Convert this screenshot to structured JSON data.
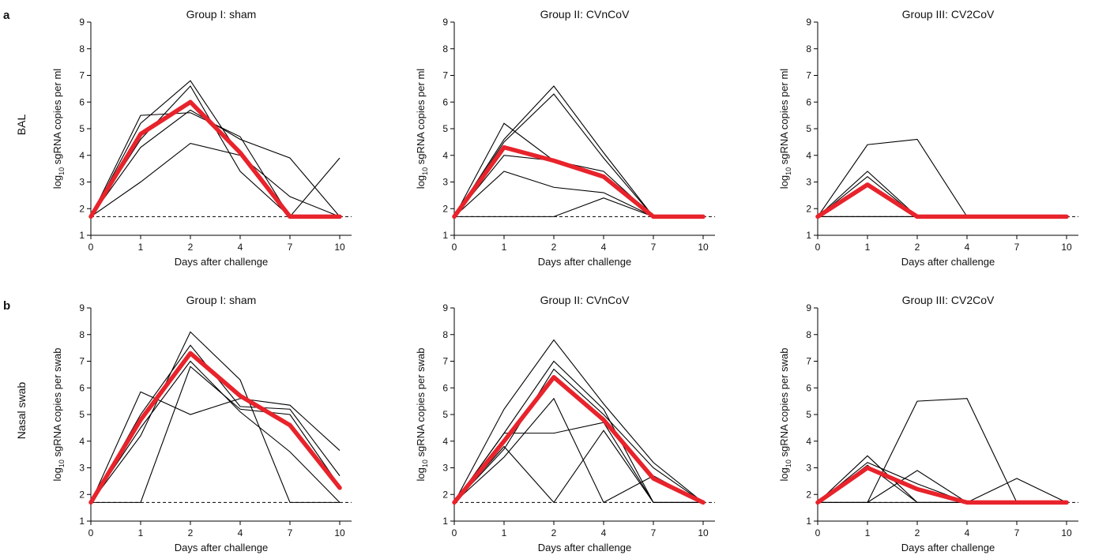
{
  "figure": {
    "panel_labels": [
      "a",
      "b"
    ],
    "row_labels": [
      "BAL",
      "Nasal swab"
    ]
  },
  "chart_data": [
    {
      "type": "line",
      "title": "Group I: sham",
      "xlabel": "Days after challenge",
      "ylabel_prefix": "log",
      "ylabel_sub": "10",
      "ylabel_suffix": " sgRNA copies per ml",
      "categories": [
        "0",
        "1",
        "2",
        "4",
        "7",
        "10"
      ],
      "ylim": [
        1,
        9
      ],
      "yticks": [
        1,
        2,
        3,
        4,
        5,
        6,
        7,
        8,
        9
      ],
      "threshold": 1.7,
      "series": [
        {
          "values": [
            1.7,
            5.5,
            5.6,
            4.7,
            1.7,
            1.7
          ]
        },
        {
          "values": [
            1.7,
            5.2,
            6.8,
            4.0,
            1.7,
            1.7
          ]
        },
        {
          "values": [
            1.7,
            4.6,
            6.6,
            3.4,
            1.7,
            3.9
          ]
        },
        {
          "values": [
            1.7,
            4.3,
            5.7,
            4.6,
            3.9,
            1.7
          ]
        },
        {
          "values": [
            1.7,
            3.0,
            4.45,
            4.0,
            2.45,
            1.7
          ]
        }
      ],
      "mean": [
        1.7,
        4.8,
        6.0,
        4.1,
        1.7,
        1.7
      ],
      "colors": {
        "individual": "#000000",
        "mean": "#e8232b"
      }
    },
    {
      "type": "line",
      "title": "Group II: CVnCoV",
      "xlabel": "Days after challenge",
      "ylabel_prefix": "log",
      "ylabel_sub": "10",
      "ylabel_suffix": " sgRNA copies per ml",
      "categories": [
        "0",
        "1",
        "2",
        "4",
        "7",
        "10"
      ],
      "ylim": [
        1,
        9
      ],
      "yticks": [
        1,
        2,
        3,
        4,
        5,
        6,
        7,
        8,
        9
      ],
      "threshold": 1.7,
      "series": [
        {
          "values": [
            1.7,
            5.2,
            3.8,
            3.4,
            1.7,
            1.7
          ]
        },
        {
          "values": [
            1.7,
            4.6,
            6.6,
            4.1,
            1.7,
            1.7
          ]
        },
        {
          "values": [
            1.7,
            4.5,
            6.3,
            3.9,
            1.7,
            1.7
          ]
        },
        {
          "values": [
            1.7,
            4.0,
            3.8,
            3.2,
            1.7,
            1.7
          ]
        },
        {
          "values": [
            1.7,
            3.4,
            2.8,
            2.6,
            1.7,
            1.7
          ]
        },
        {
          "values": [
            1.7,
            1.7,
            1.7,
            2.4,
            1.7,
            1.7
          ]
        }
      ],
      "mean": [
        1.7,
        4.3,
        3.8,
        3.2,
        1.7,
        1.7
      ],
      "colors": {
        "individual": "#000000",
        "mean": "#e8232b"
      }
    },
    {
      "type": "line",
      "title": "Group III: CV2CoV",
      "xlabel": "Days after challenge",
      "ylabel_prefix": "log",
      "ylabel_sub": "10",
      "ylabel_suffix": " sgRNA copies per ml",
      "categories": [
        "0",
        "1",
        "2",
        "4",
        "7",
        "10"
      ],
      "ylim": [
        1,
        9
      ],
      "yticks": [
        1,
        2,
        3,
        4,
        5,
        6,
        7,
        8,
        9
      ],
      "threshold": 1.7,
      "series": [
        {
          "values": [
            1.7,
            4.4,
            4.6,
            1.7,
            1.7,
            1.7
          ]
        },
        {
          "values": [
            1.7,
            3.4,
            1.7,
            1.7,
            1.7,
            1.7
          ]
        },
        {
          "values": [
            1.7,
            3.2,
            1.7,
            1.7,
            1.7,
            1.7
          ]
        },
        {
          "values": [
            1.7,
            1.7,
            1.7,
            1.7,
            1.7,
            1.7
          ]
        },
        {
          "values": [
            1.7,
            1.7,
            1.7,
            1.7,
            1.7,
            1.7
          ]
        }
      ],
      "mean": [
        1.7,
        2.9,
        1.7,
        1.7,
        1.7,
        1.7
      ],
      "colors": {
        "individual": "#000000",
        "mean": "#e8232b"
      }
    },
    {
      "type": "line",
      "title": "Group I: sham",
      "xlabel": "Days after challenge",
      "ylabel_prefix": "log",
      "ylabel_sub": "10",
      "ylabel_suffix": " sgRNA copies per swab",
      "categories": [
        "0",
        "1",
        "2",
        "4",
        "7",
        "10"
      ],
      "ylim": [
        1,
        9
      ],
      "yticks": [
        1,
        2,
        3,
        4,
        5,
        6,
        7,
        8,
        9
      ],
      "threshold": 1.7,
      "series": [
        {
          "values": [
            1.7,
            5.85,
            5.0,
            5.6,
            5.35,
            3.65
          ]
        },
        {
          "values": [
            1.7,
            4.2,
            8.1,
            6.3,
            1.7,
            1.7
          ]
        },
        {
          "values": [
            1.7,
            5.0,
            7.6,
            5.3,
            5.2,
            2.7
          ]
        },
        {
          "values": [
            1.7,
            1.7,
            6.8,
            5.2,
            5.0,
            2.3
          ]
        },
        {
          "values": [
            1.7,
            4.5,
            7.0,
            5.1,
            3.6,
            1.7
          ]
        }
      ],
      "mean": [
        1.7,
        4.8,
        7.3,
        5.7,
        4.6,
        2.25
      ],
      "colors": {
        "individual": "#000000",
        "mean": "#e8232b"
      }
    },
    {
      "type": "line",
      "title": "Group II: CVnCoV",
      "xlabel": "Days after challenge",
      "ylabel_prefix": "log",
      "ylabel_sub": "10",
      "ylabel_suffix": " sgRNA copies per swab",
      "categories": [
        "0",
        "1",
        "2",
        "4",
        "7",
        "10"
      ],
      "ylim": [
        1,
        9
      ],
      "yticks": [
        1,
        2,
        3,
        4,
        5,
        6,
        7,
        8,
        9
      ],
      "threshold": 1.7,
      "series": [
        {
          "values": [
            1.7,
            5.2,
            7.8,
            5.4,
            3.2,
            1.7
          ]
        },
        {
          "values": [
            1.7,
            4.3,
            7.0,
            5.2,
            1.7,
            1.7
          ]
        },
        {
          "values": [
            1.7,
            3.7,
            6.7,
            5.0,
            3.0,
            1.7
          ]
        },
        {
          "values": [
            1.7,
            4.3,
            4.3,
            4.7,
            1.7,
            1.7
          ]
        },
        {
          "values": [
            1.7,
            3.8,
            1.7,
            4.4,
            1.7,
            1.7
          ]
        },
        {
          "values": [
            1.7,
            3.4,
            5.6,
            1.7,
            2.7,
            1.7
          ]
        }
      ],
      "mean": [
        1.7,
        4.0,
        6.4,
        4.8,
        2.6,
        1.7
      ],
      "colors": {
        "individual": "#000000",
        "mean": "#e8232b"
      }
    },
    {
      "type": "line",
      "title": "Group III: CV2CoV",
      "xlabel": "Days after challenge",
      "ylabel_prefix": "log",
      "ylabel_sub": "10",
      "ylabel_suffix": " sgRNA copies per swab",
      "categories": [
        "0",
        "1",
        "2",
        "4",
        "7",
        "10"
      ],
      "ylim": [
        1,
        9
      ],
      "yticks": [
        1,
        2,
        3,
        4,
        5,
        6,
        7,
        8,
        9
      ],
      "threshold": 1.7,
      "series": [
        {
          "values": [
            1.7,
            1.7,
            5.5,
            5.6,
            1.7,
            1.7
          ]
        },
        {
          "values": [
            1.7,
            3.45,
            1.7,
            1.7,
            1.7,
            1.7
          ]
        },
        {
          "values": [
            1.7,
            3.2,
            2.4,
            1.7,
            1.7,
            1.7
          ]
        },
        {
          "values": [
            1.7,
            3.1,
            1.7,
            1.7,
            1.7,
            1.7
          ]
        },
        {
          "values": [
            1.7,
            1.7,
            2.9,
            1.7,
            1.7,
            1.7
          ]
        },
        {
          "values": [
            1.7,
            1.7,
            1.7,
            1.7,
            2.6,
            1.7
          ]
        }
      ],
      "mean": [
        1.7,
        3.0,
        2.2,
        1.7,
        1.7,
        1.7
      ],
      "colors": {
        "individual": "#000000",
        "mean": "#e8232b"
      }
    }
  ]
}
